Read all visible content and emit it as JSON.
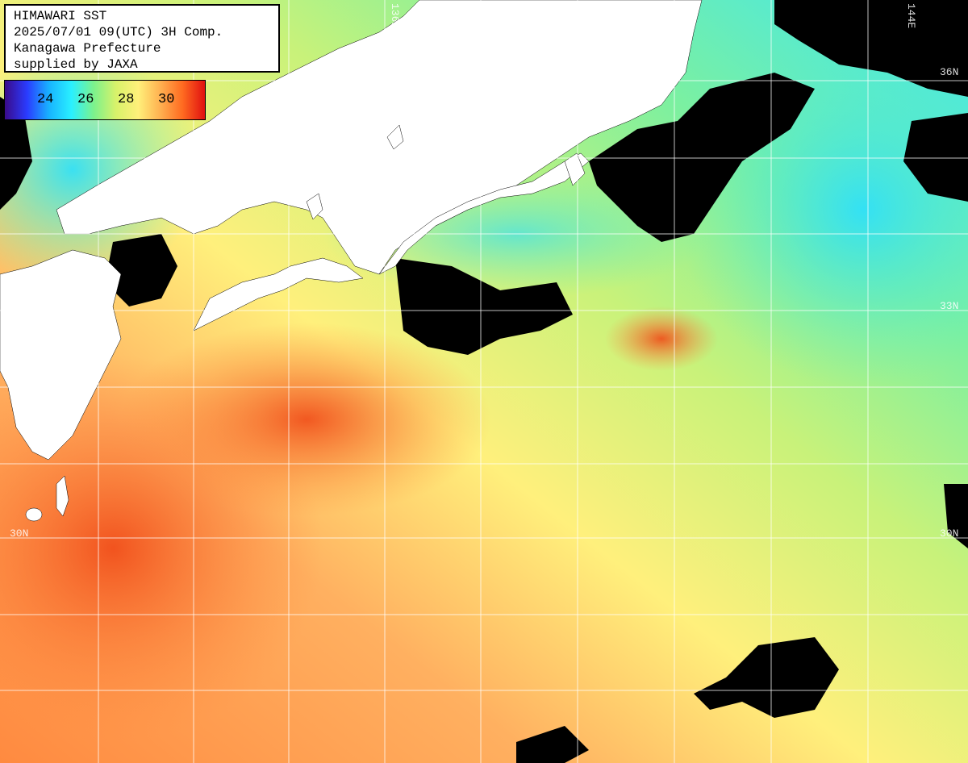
{
  "info": {
    "line1": "HIMAWARI SST",
    "line2": "2025/07/01 09(UTC) 3H Comp.",
    "line3": "Kanagawa Prefecture",
    "line4": "supplied by JAXA"
  },
  "colorbar": {
    "ticks": [
      "24",
      "26",
      "28",
      "30"
    ],
    "colors": [
      "#3a0a8a",
      "#2a3cff",
      "#18b4ff",
      "#2af0ff",
      "#7cf28c",
      "#d8f26a",
      "#fff07a",
      "#ffb050",
      "#ff6a20",
      "#e01010"
    ]
  },
  "grid_labels": {
    "lon_136": "136E",
    "lon_144": "144E",
    "lat_36": "36N",
    "lat_33": "33N",
    "lat_30_left": "30N",
    "lat_30_right": "30N"
  },
  "colors": {
    "land": "#ffffff",
    "cloud": "#000000",
    "grid": "#ffffff",
    "sea_warm": "#ff7a3a",
    "sea_mid": "#ffef80",
    "sea_cool": "#7cf09a",
    "sea_cold": "#3ce8f0"
  }
}
